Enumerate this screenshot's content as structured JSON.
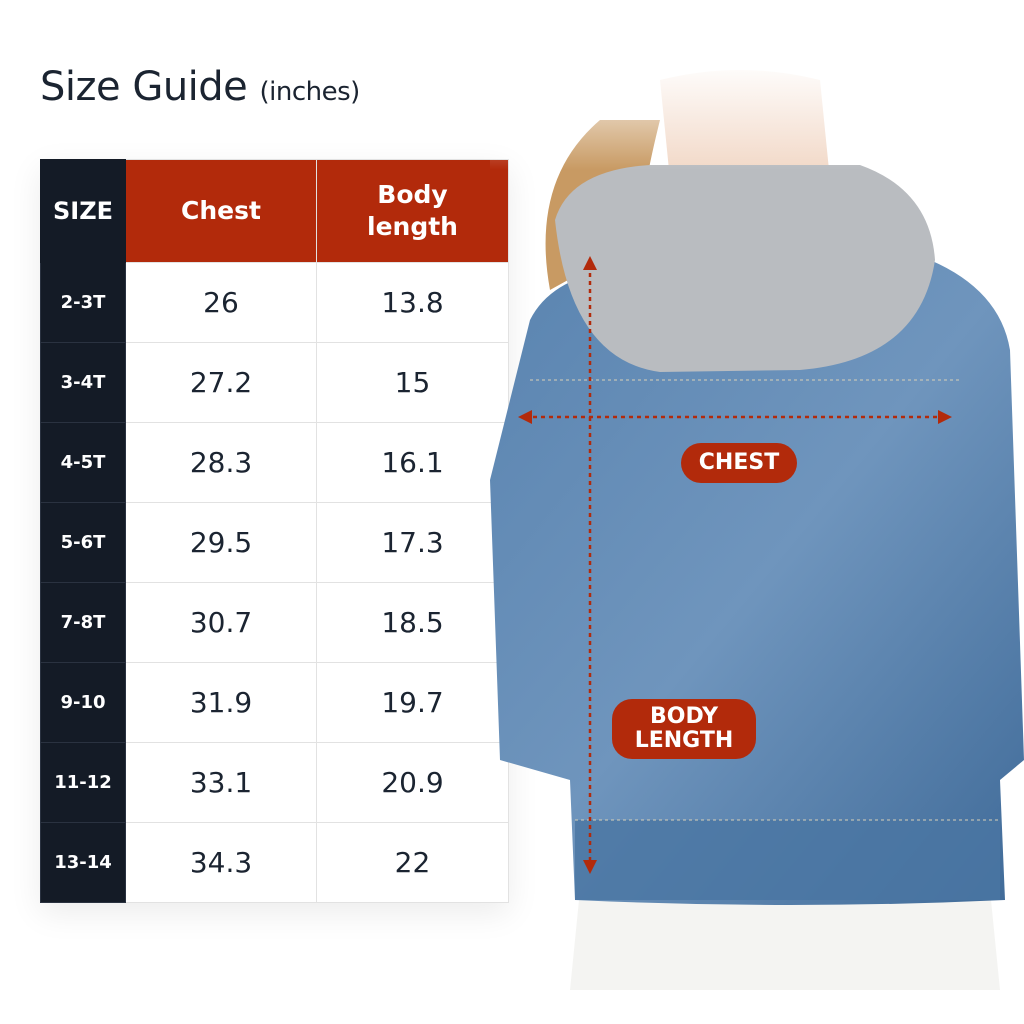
{
  "title": {
    "main": "Size Guide",
    "unit": "(inches)"
  },
  "table": {
    "headers": {
      "size": "SIZE",
      "chest": "Chest",
      "body_length_1": "Body",
      "body_length_2": "length"
    },
    "rows": [
      {
        "size": "2-3T",
        "chest": "26",
        "body_length": "13.8"
      },
      {
        "size": "3-4T",
        "chest": "27.2",
        "body_length": "15"
      },
      {
        "size": "4-5T",
        "chest": "28.3",
        "body_length": "16.1"
      },
      {
        "size": "5-6T",
        "chest": "29.5",
        "body_length": "17.3"
      },
      {
        "size": "7-8T",
        "chest": "30.7",
        "body_length": "18.5"
      },
      {
        "size": "9-10",
        "chest": "31.9",
        "body_length": "19.7"
      },
      {
        "size": "11-12",
        "chest": "33.1",
        "body_length": "20.9"
      },
      {
        "size": "13-14",
        "chest": "34.3",
        "body_length": "22"
      }
    ]
  },
  "labels": {
    "chest": "CHEST",
    "body_1": "BODY",
    "body_2": "LENGTH"
  },
  "colors": {
    "accent": "#b22a0b",
    "dark": "#141b26",
    "denim": "#4f79a6",
    "hood": "#b9bcc0"
  }
}
